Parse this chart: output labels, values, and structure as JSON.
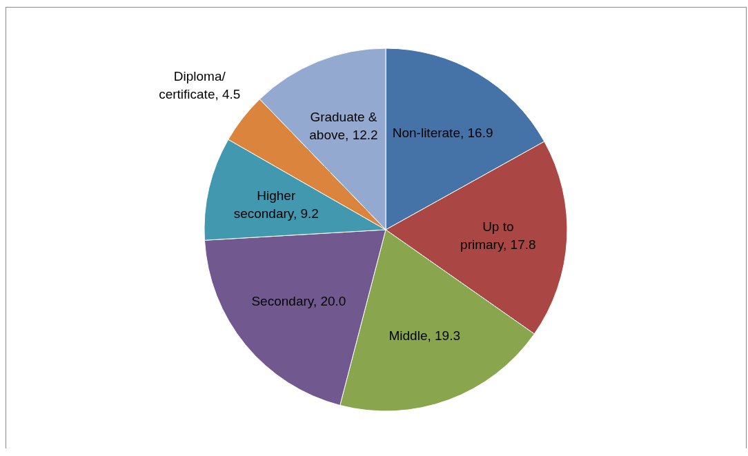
{
  "chart_data": {
    "type": "pie",
    "categories": [
      "Non-literate",
      "Up to primary",
      "Middle",
      "Secondary",
      "Higher secondary",
      "Diploma/certificate",
      "Graduate & above"
    ],
    "values": [
      16.9,
      17.8,
      19.3,
      20.0,
      9.2,
      4.5,
      12.2
    ],
    "colors": [
      "#4572a7",
      "#aa4643",
      "#89a54e",
      "#71588f",
      "#4198af",
      "#db843d",
      "#93a9cf"
    ],
    "value_labels": [
      ", 16.9",
      ", 17.8",
      ", 19.3",
      ", 20.0",
      ", 9.2",
      ", 4.5",
      ", 12.2"
    ],
    "legend": false
  }
}
